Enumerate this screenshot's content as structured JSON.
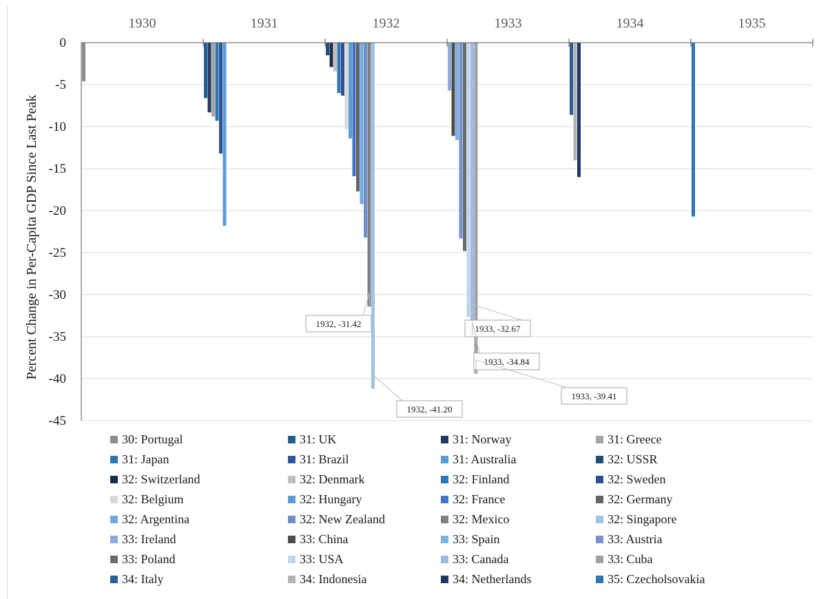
{
  "chart_data": {
    "type": "bar",
    "ylabel": "Percent Change in Per-Capita GDP Since Last Peak",
    "ylim": [
      -45,
      0
    ],
    "yticks": [
      0,
      -5,
      -10,
      -15,
      -20,
      -25,
      -30,
      -35,
      -40,
      -45
    ],
    "year_labels": [
      "1930",
      "1931",
      "1932",
      "1933",
      "1934",
      "1935"
    ],
    "grid": true,
    "legend_position": "bottom",
    "series": [
      {
        "name": "30: Portugal",
        "year": 1930,
        "value": -4.6,
        "color": "#8c8c8c"
      },
      {
        "name": "31: UK",
        "year": 1931,
        "value": -6.6,
        "color": "#255e91"
      },
      {
        "name": "31: Norway",
        "year": 1931,
        "value": -8.3,
        "color": "#1f3864"
      },
      {
        "name": "31: Greece",
        "year": 1931,
        "value": -8.8,
        "color": "#a5a5a5"
      },
      {
        "name": "31: Japan",
        "year": 1931,
        "value": -9.3,
        "color": "#2e75b6"
      },
      {
        "name": "31: Brazil",
        "year": 1931,
        "value": -13.2,
        "color": "#2f5597"
      },
      {
        "name": "31: Australia",
        "year": 1931,
        "value": -21.8,
        "color": "#5b9bd5"
      },
      {
        "name": "32: USSR",
        "year": 1932,
        "value": -1.5,
        "color": "#1f4e79"
      },
      {
        "name": "32: Switzerland",
        "year": 1932,
        "value": -2.9,
        "color": "#1c2b4a"
      },
      {
        "name": "32: Denmark",
        "year": 1932,
        "value": -3.4,
        "color": "#bfbfbf"
      },
      {
        "name": "32: Finland",
        "year": 1932,
        "value": -6.0,
        "color": "#2e75b6"
      },
      {
        "name": "32: Sweden",
        "year": 1932,
        "value": -6.3,
        "color": "#2f4f8f"
      },
      {
        "name": "32: Belgium",
        "year": 1932,
        "value": -10.3,
        "color": "#d9d9d9"
      },
      {
        "name": "32: Hungary",
        "year": 1932,
        "value": -11.4,
        "color": "#5b9bd5"
      },
      {
        "name": "32: France",
        "year": 1932,
        "value": -15.9,
        "color": "#4472c4"
      },
      {
        "name": "32: Germany",
        "year": 1932,
        "value": -17.7,
        "color": "#636363"
      },
      {
        "name": "32: Argentina",
        "year": 1932,
        "value": -19.2,
        "color": "#6fa8dc"
      },
      {
        "name": "32: New Zealand",
        "year": 1932,
        "value": -23.2,
        "color": "#6f8fc9"
      },
      {
        "name": "32: Mexico",
        "year": 1932,
        "value": -31.42,
        "color": "#7f7f7f"
      },
      {
        "name": "32: Singapore",
        "year": 1932,
        "value": -41.2,
        "color": "#9dc3e6"
      },
      {
        "name": "33: Ireland",
        "year": 1933,
        "value": -5.7,
        "color": "#8eaadb"
      },
      {
        "name": "33: China",
        "year": 1933,
        "value": -11.1,
        "color": "#4d4d4d"
      },
      {
        "name": "33: Spain",
        "year": 1933,
        "value": -11.6,
        "color": "#7fb2e0"
      },
      {
        "name": "33: Austria",
        "year": 1933,
        "value": -23.3,
        "color": "#7392cf"
      },
      {
        "name": "33: Poland",
        "year": 1933,
        "value": -24.8,
        "color": "#6b6b6b"
      },
      {
        "name": "33: USA",
        "year": 1933,
        "value": -32.67,
        "color": "#bdd7ee"
      },
      {
        "name": "33: Canada",
        "year": 1933,
        "value": -34.84,
        "color": "#9db8e3"
      },
      {
        "name": "33: Cuba",
        "year": 1933,
        "value": -39.41,
        "color": "#a0a0a0"
      },
      {
        "name": "34: Italy",
        "year": 1934,
        "value": -8.6,
        "color": "#2a5f98"
      },
      {
        "name": "34: Indonesia",
        "year": 1934,
        "value": -14.0,
        "color": "#b3b3b3"
      },
      {
        "name": "34: Netherlands",
        "year": 1934,
        "value": -16.0,
        "color": "#203864"
      },
      {
        "name": "35: Czecholsovakia",
        "year": 1935,
        "value": -20.7,
        "color": "#2e75b6"
      }
    ],
    "annotations": [
      {
        "series": "32: Mexico",
        "text": "1932, -31.42"
      },
      {
        "series": "32: Singapore",
        "text": "1932, -41.20"
      },
      {
        "series": "33: USA",
        "text": "1933, -32.67"
      },
      {
        "series": "33: Canada",
        "text": "1933, -34.84"
      },
      {
        "series": "33: Cuba",
        "text": "1933, -39.41"
      }
    ]
  }
}
